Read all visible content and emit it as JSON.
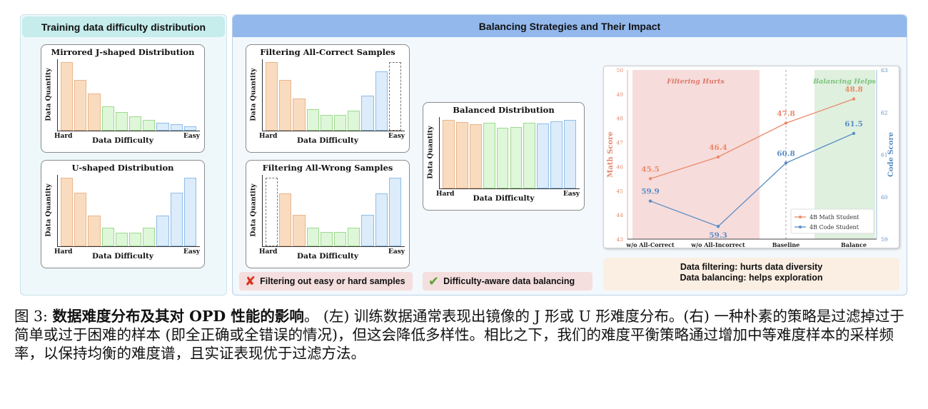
{
  "left_panel": {
    "title": "Training data difficulty distribution",
    "charts": [
      {
        "title": "Mirrored J-shaped Distribution",
        "ylabel": "Data Quantity",
        "xlabel": "Data Difficulty",
        "x_left": "Hard",
        "x_right": "Easy",
        "values": [
          100,
          74,
          54,
          35,
          27,
          21,
          16,
          11,
          9,
          6
        ]
      },
      {
        "title": "U-shaped Distribution",
        "ylabel": "Data Quantity",
        "xlabel": "Data Difficulty",
        "x_left": "Hard",
        "x_right": "Easy",
        "values": [
          90,
          70,
          40,
          24,
          18,
          18,
          24,
          40,
          70,
          90
        ]
      }
    ]
  },
  "right_panel": {
    "title": "Balancing Strategies and Their Impact",
    "filter_charts": [
      {
        "title": "Filtering All-Correct Samples",
        "ylabel": "Data Quantity",
        "xlabel": "Data Difficulty",
        "x_left": "Hard",
        "x_right": "Easy",
        "values": [
          95,
          70,
          45,
          30,
          22,
          22,
          28,
          48,
          82,
          95
        ],
        "removed": [
          9
        ]
      },
      {
        "title": "Filtering All-Wrong Samples",
        "ylabel": "Data Quantity",
        "xlabel": "Data Difficulty",
        "x_left": "Hard",
        "x_right": "Easy",
        "values": [
          88,
          68,
          40,
          24,
          18,
          18,
          24,
          40,
          68,
          88
        ],
        "removed": [
          0
        ]
      }
    ],
    "balanced_chart": {
      "title": "Balanced Distribution",
      "ylabel": "Data Quantity",
      "xlabel": "Data Difficulty",
      "x_left": "Hard",
      "x_right": "Easy",
      "values": [
        90,
        87,
        84,
        86,
        80,
        81,
        86,
        85,
        88,
        90
      ]
    },
    "tags": {
      "bad": {
        "icon": "cross-icon",
        "label": "Filtering out easy or hard samples"
      },
      "good": {
        "icon": "checkmark-icon",
        "label": "Difficulty-aware data balancing"
      }
    },
    "summary": {
      "line1": "Data filtering: hurts data diversity",
      "line2": "Data balancing: helps exploration"
    }
  },
  "chart_data": {
    "type": "line",
    "categories": [
      "w/o All-Correct",
      "w/o All-Incorrect",
      "Baseline",
      "Balance"
    ],
    "series": [
      {
        "name": "4B Math Student",
        "axis": "left",
        "values": [
          45.5,
          46.4,
          47.8,
          48.8
        ],
        "color": "#ec8a6a"
      },
      {
        "name": "4B Code Student",
        "axis": "right",
        "values": [
          59.9,
          59.3,
          60.8,
          61.5
        ],
        "color": "#5b8ec4"
      }
    ],
    "ylabel_left": "Math Score",
    "ylabel_right": "Code Score",
    "ylim_left": [
      43,
      50
    ],
    "ylim_right": [
      59,
      63
    ],
    "yticks_left": [
      "43",
      "44",
      "45",
      "46",
      "47",
      "48",
      "49",
      "50"
    ],
    "yticks_right": [
      "59",
      "60",
      "61",
      "62",
      "63"
    ],
    "regions": [
      {
        "label": "Filtering Hurts",
        "from": "w/o All-Correct",
        "to": "w/o All-Incorrect",
        "color": "#f7dcdc",
        "text_color": "#e07a6a"
      },
      {
        "label": "Balancing Helps",
        "from": "Balance",
        "to": "Balance",
        "color": "#dff0df",
        "text_color": "#7cc27c"
      }
    ],
    "legend": "bottom-right",
    "grid": false
  },
  "caption": {
    "fig_label": "图 3:",
    "bold_title": "数据难度分布及其对 OPD 性能的影响",
    "text": "。 (左) 训练数据通常表现出镜像的 J 形或 U 形难度分布。(右) 一种朴素的策略是过滤掉过于简单或过于困难的样本 (即全正确或全错误的情况)，但这会降低多样性。相比之下，我们的难度平衡策略通过增加中等难度样本的采样频率，以保持均衡的难度谱，且实证表现优于过滤方法。"
  },
  "colors": {
    "hard": "#f9dcbf",
    "hard_edge": "#e8b58a",
    "mid": "#ddf7d8",
    "mid_edge": "#9fd98f",
    "easy": "#dcecfa",
    "easy_edge": "#8fbde8"
  }
}
